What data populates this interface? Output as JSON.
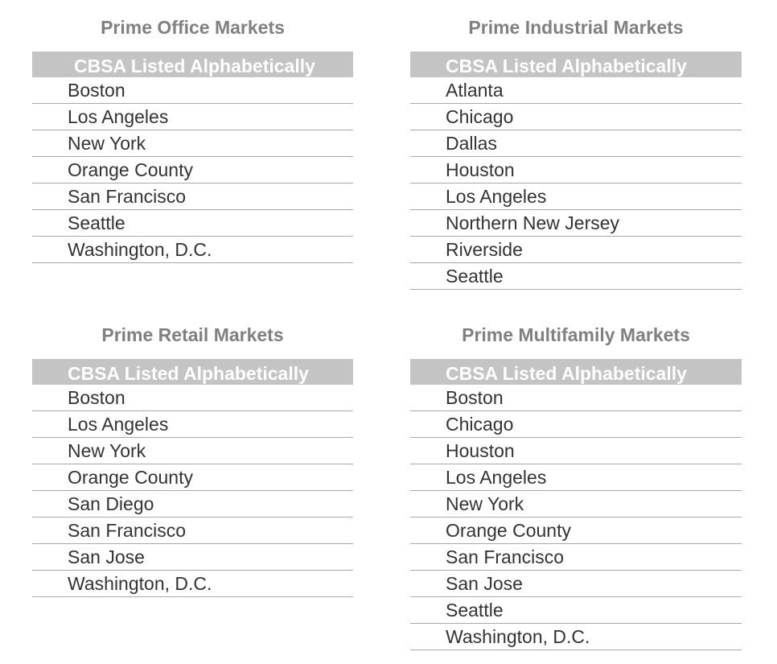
{
  "office": {
    "title": "Prime Office Markets",
    "header": "CBSA Listed Alphabetically",
    "markets": [
      "Boston",
      "Los Angeles",
      "New York",
      "Orange County",
      "San Francisco",
      "Seattle",
      "Washington, D.C."
    ]
  },
  "industrial": {
    "title": "Prime Industrial Markets",
    "header": "CBSA Listed Alphabetically",
    "markets": [
      "Atlanta",
      "Chicago",
      "Dallas",
      "Houston",
      "Los Angeles",
      "Northern New Jersey",
      "Riverside",
      "Seattle"
    ]
  },
  "retail": {
    "title": "Prime Retail Markets",
    "header": "CBSA Listed Alphabetically",
    "markets": [
      "Boston",
      "Los Angeles",
      "New York",
      "Orange County",
      "San Diego",
      "San Francisco",
      "San Jose",
      "Washington, D.C."
    ]
  },
  "multifamily": {
    "title": "Prime Multifamily Markets",
    "header": "CBSA Listed Alphabetically",
    "markets": [
      "Boston",
      "Chicago",
      "Houston",
      "Los Angeles",
      "New York",
      "Orange County",
      "San Francisco",
      "San Jose",
      "Seattle",
      "Washington, D.C."
    ]
  }
}
